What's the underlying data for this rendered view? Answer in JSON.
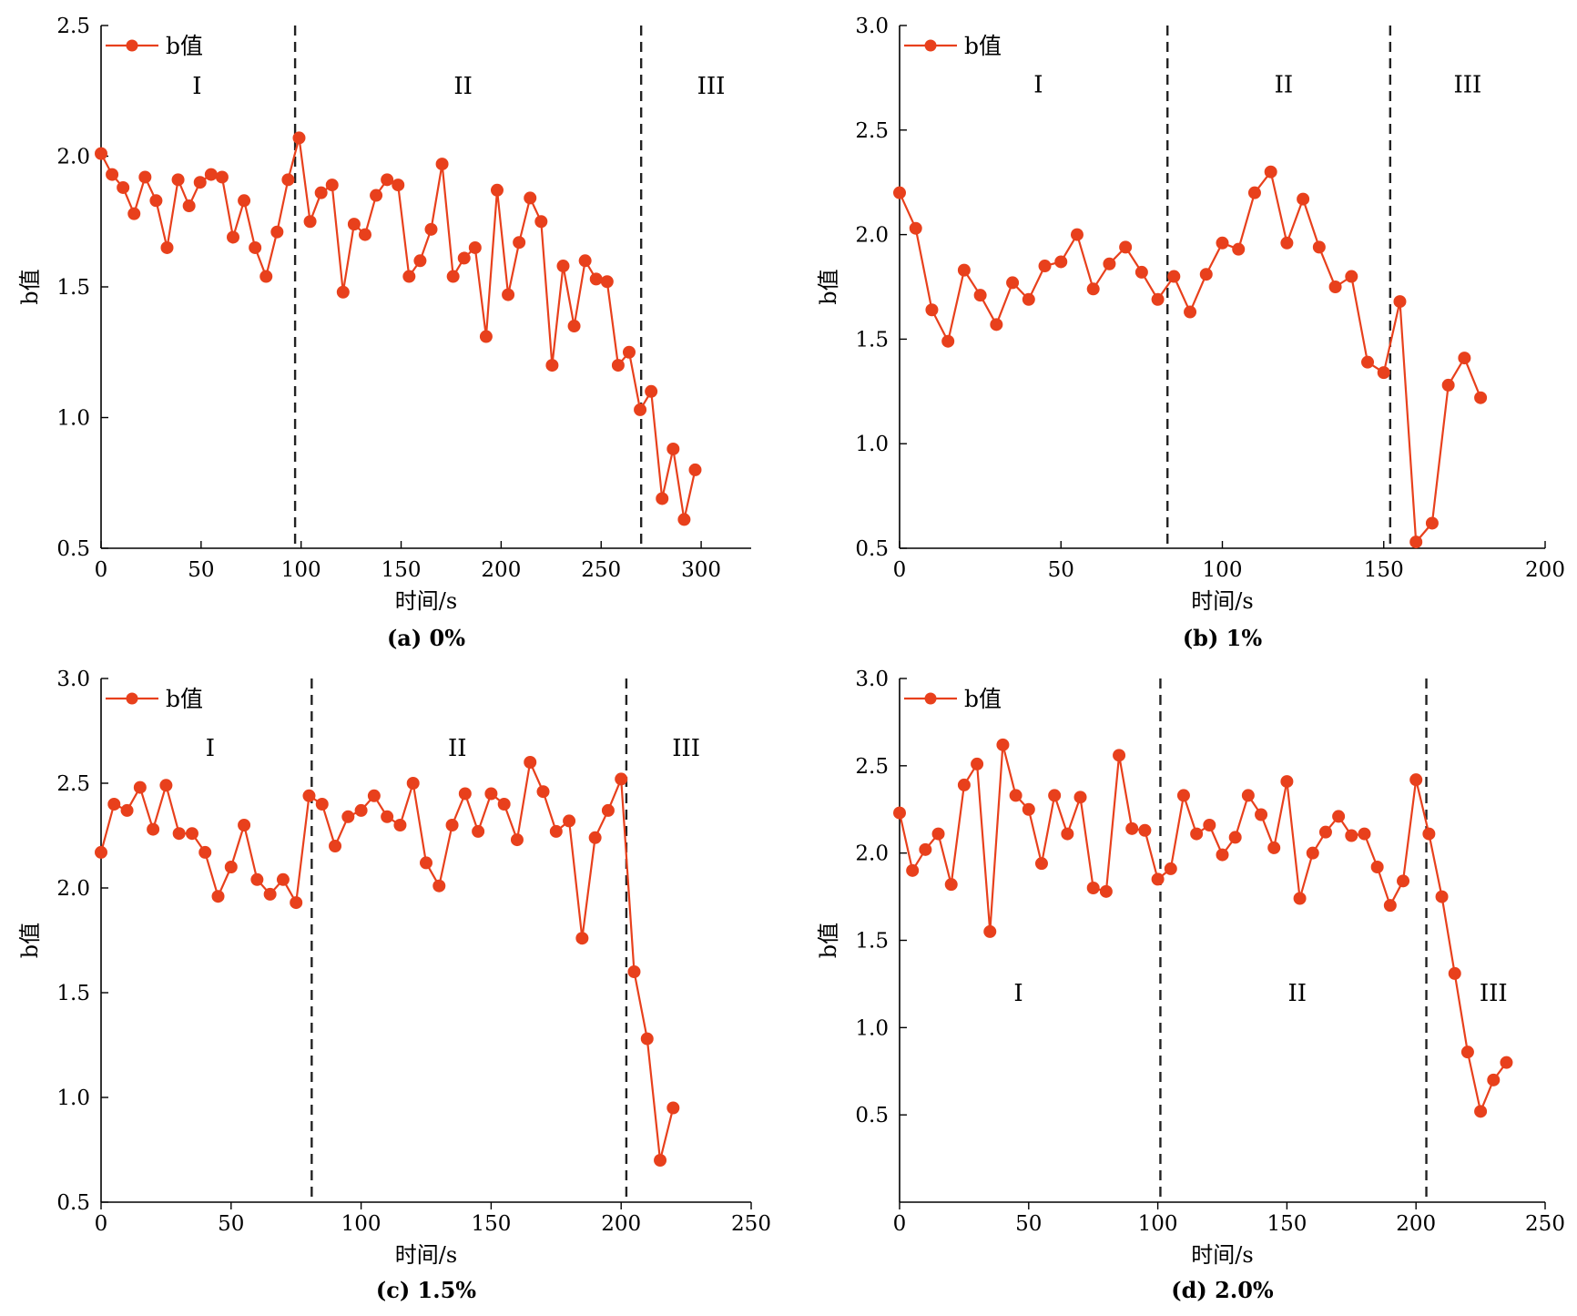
{
  "colors": {
    "series": "#e8401c",
    "axis": "#000000",
    "divider": "#222222"
  },
  "chart_data": [
    {
      "type": "line",
      "caption": "(a) 0%",
      "xlabel": "时间/s",
      "ylabel": "b值",
      "legend": "b值",
      "legend_position": "top-left",
      "xlim": [
        0,
        325
      ],
      "ylim": [
        0.5,
        2.5
      ],
      "xticks": [
        0,
        50,
        100,
        150,
        200,
        250,
        300
      ],
      "yticks": [
        0.5,
        1.0,
        1.5,
        2.0,
        2.5
      ],
      "stage_dividers": [
        97,
        270
      ],
      "stages": [
        {
          "label": "I",
          "x": 48,
          "y": 2.27
        },
        {
          "label": "II",
          "x": 181,
          "y": 2.27
        },
        {
          "label": "III",
          "x": 305,
          "y": 2.27
        }
      ],
      "series": [
        {
          "x": [
            0,
            5.5,
            11,
            16.5,
            22,
            27.5,
            33,
            38.5,
            44,
            49.5,
            55,
            60.5,
            66,
            71.5,
            77,
            82.5,
            88,
            93.5,
            99,
            104.5,
            110,
            115.5,
            121,
            126.5,
            132,
            137.5,
            143,
            148.5,
            154,
            159.5,
            165,
            170.5,
            176,
            181.5,
            187,
            192.5,
            198,
            203.5,
            209,
            214.5,
            220,
            225.5,
            231,
            236.5,
            242,
            247.5,
            253,
            258.5,
            264,
            269.5,
            275,
            280.5,
            286,
            291.5,
            297
          ],
          "y": [
            2.01,
            1.93,
            1.88,
            1.78,
            1.92,
            1.83,
            1.65,
            1.91,
            1.81,
            1.9,
            1.93,
            1.92,
            1.69,
            1.83,
            1.65,
            1.54,
            1.71,
            1.91,
            2.07,
            1.75,
            1.86,
            1.89,
            1.48,
            1.74,
            1.7,
            1.85,
            1.91,
            1.89,
            1.54,
            1.6,
            1.72,
            1.97,
            1.54,
            1.61,
            1.65,
            1.31,
            1.87,
            1.47,
            1.67,
            1.84,
            1.75,
            1.2,
            1.58,
            1.35,
            1.6,
            1.53,
            1.52,
            1.2,
            1.25,
            1.03,
            1.1,
            0.69,
            0.88,
            0.61,
            0.8
          ]
        }
      ]
    },
    {
      "type": "line",
      "caption": "(b) 1%",
      "xlabel": "时间/s",
      "ylabel": "b值",
      "legend": "b值",
      "legend_position": "top-left",
      "xlim": [
        0,
        200
      ],
      "ylim": [
        0.5,
        3.0
      ],
      "xticks": [
        0,
        50,
        100,
        150,
        200
      ],
      "yticks": [
        0.5,
        1.0,
        1.5,
        2.0,
        2.5,
        3.0
      ],
      "stage_dividers": [
        83,
        152
      ],
      "stages": [
        {
          "label": "I",
          "x": 43,
          "y": 2.72
        },
        {
          "label": "II",
          "x": 119,
          "y": 2.72
        },
        {
          "label": "III",
          "x": 176,
          "y": 2.72
        }
      ],
      "series": [
        {
          "x": [
            0,
            5,
            10,
            15,
            20,
            25,
            30,
            35,
            40,
            45,
            50,
            55,
            60,
            65,
            70,
            75,
            80,
            85,
            90,
            95,
            100,
            105,
            110,
            115,
            120,
            125,
            130,
            135,
            140,
            145,
            150,
            155,
            160,
            165,
            170,
            175,
            180
          ],
          "y": [
            2.2,
            2.03,
            1.64,
            1.49,
            1.83,
            1.71,
            1.57,
            1.77,
            1.69,
            1.85,
            1.87,
            2.0,
            1.74,
            1.86,
            1.94,
            1.82,
            1.69,
            1.8,
            1.63,
            1.81,
            1.96,
            1.93,
            2.2,
            2.3,
            1.96,
            2.17,
            1.94,
            1.75,
            1.8,
            1.39,
            1.34,
            1.68,
            0.53,
            0.62,
            1.28,
            1.41,
            1.22
          ]
        }
      ]
    },
    {
      "type": "line",
      "caption": "(c) 1.5%",
      "xlabel": "时间/s",
      "ylabel": "b值",
      "legend": "b值",
      "legend_position": "top-left",
      "xlim": [
        0,
        250
      ],
      "ylim": [
        0.5,
        3.0
      ],
      "xticks": [
        0,
        50,
        100,
        150,
        200,
        250
      ],
      "yticks": [
        0.5,
        1.0,
        1.5,
        2.0,
        2.5,
        3.0
      ],
      "stage_dividers": [
        81,
        202
      ],
      "stages": [
        {
          "label": "I",
          "x": 42,
          "y": 2.67
        },
        {
          "label": "II",
          "x": 137,
          "y": 2.67
        },
        {
          "label": "III",
          "x": 225,
          "y": 2.67
        }
      ],
      "series": [
        {
          "x": [
            0,
            5,
            10,
            15,
            20,
            25,
            30,
            35,
            40,
            45,
            50,
            55,
            60,
            65,
            70,
            75,
            80,
            85,
            90,
            95,
            100,
            105,
            110,
            115,
            120,
            125,
            130,
            135,
            140,
            145,
            150,
            155,
            160,
            165,
            170,
            175,
            180,
            185,
            190,
            195,
            200,
            205,
            210,
            215,
            220
          ],
          "y": [
            2.17,
            2.4,
            2.37,
            2.48,
            2.28,
            2.49,
            2.26,
            2.26,
            2.17,
            1.96,
            2.1,
            2.3,
            2.04,
            1.97,
            2.04,
            1.93,
            2.44,
            2.4,
            2.2,
            2.34,
            2.37,
            2.44,
            2.34,
            2.3,
            2.5,
            2.12,
            2.01,
            2.3,
            2.45,
            2.27,
            2.45,
            2.4,
            2.23,
            2.6,
            2.46,
            2.27,
            2.32,
            1.76,
            2.24,
            2.37,
            2.52,
            1.6,
            1.28,
            0.7,
            0.95
          ]
        }
      ]
    },
    {
      "type": "line",
      "caption": "(d) 2.0%",
      "xlabel": "时间/s",
      "ylabel": "b值",
      "legend": "b值",
      "legend_position": "top-left",
      "xlim": [
        0,
        250
      ],
      "ylim": [
        0.0,
        3.0
      ],
      "xticks": [
        0,
        50,
        100,
        150,
        200,
        250
      ],
      "yticks": [
        0.5,
        1.0,
        1.5,
        2.0,
        2.5,
        3.0
      ],
      "stage_dividers": [
        101,
        204
      ],
      "stages": [
        {
          "label": "I",
          "x": 46,
          "y": 1.2
        },
        {
          "label": "II",
          "x": 154,
          "y": 1.2
        },
        {
          "label": "III",
          "x": 230,
          "y": 1.2
        }
      ],
      "series": [
        {
          "x": [
            0,
            5,
            10,
            15,
            20,
            25,
            30,
            35,
            40,
            45,
            50,
            55,
            60,
            65,
            70,
            75,
            80,
            85,
            90,
            95,
            100,
            105,
            110,
            115,
            120,
            125,
            130,
            135,
            140,
            145,
            150,
            155,
            160,
            165,
            170,
            175,
            180,
            185,
            190,
            195,
            200,
            205,
            210,
            215,
            220,
            225,
            230,
            235
          ],
          "y": [
            2.23,
            1.9,
            2.02,
            2.11,
            1.82,
            2.39,
            2.51,
            1.55,
            2.62,
            2.33,
            2.25,
            1.94,
            2.33,
            2.11,
            2.32,
            1.8,
            1.78,
            2.56,
            2.14,
            2.13,
            1.85,
            1.91,
            2.33,
            2.11,
            2.16,
            1.99,
            2.09,
            2.33,
            2.22,
            2.03,
            2.41,
            1.74,
            2.0,
            2.12,
            2.21,
            2.1,
            2.11,
            1.92,
            1.7,
            1.84,
            2.42,
            2.11,
            1.75,
            1.31,
            0.86,
            0.52,
            0.7,
            0.8
          ]
        }
      ]
    }
  ]
}
